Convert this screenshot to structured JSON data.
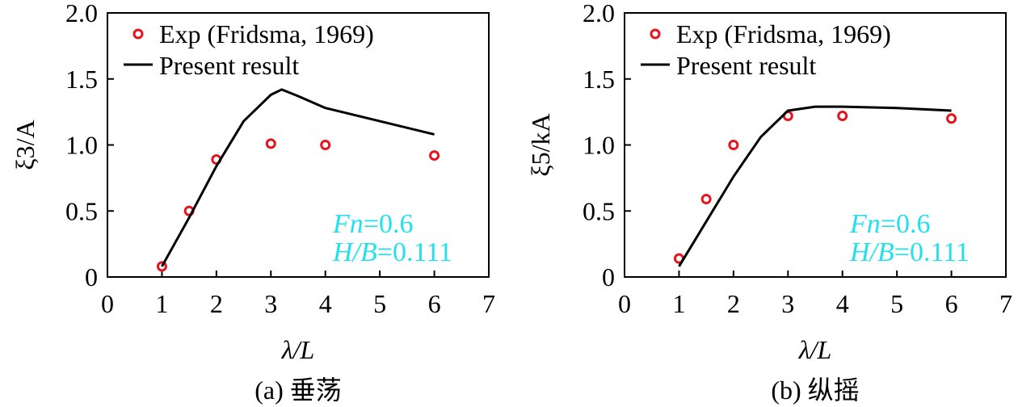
{
  "colors": {
    "experiment": "#e8141c",
    "model": "#000000",
    "annotation": "#22e0ee"
  },
  "chart_data": [
    {
      "type": "line",
      "caption": "(a) 垂荡",
      "xlabel": "λ/L",
      "ylabel": "ξ3/A",
      "xlim": [
        0,
        7
      ],
      "ylim": [
        0,
        2.0
      ],
      "xticks": [
        "0",
        "1",
        "2",
        "3",
        "4",
        "5",
        "6",
        "7"
      ],
      "yticks": [
        "0",
        "0.5",
        "1.0",
        "1.5",
        "2.0"
      ],
      "grid": false,
      "legend_position": "top-left",
      "series": [
        {
          "name": "Exp (Fridsma, 1969)",
          "style": "markers",
          "x": [
            1,
            1.5,
            2,
            3,
            4,
            6
          ],
          "y": [
            0.08,
            0.5,
            0.89,
            1.01,
            1.0,
            0.92
          ]
        },
        {
          "name": "Present result",
          "style": "line",
          "x": [
            1,
            1.5,
            2,
            2.5,
            3,
            3.2,
            3.5,
            4,
            5,
            6
          ],
          "y": [
            0.08,
            0.45,
            0.84,
            1.18,
            1.38,
            1.42,
            1.37,
            1.28,
            1.18,
            1.08
          ]
        }
      ],
      "annotations": [
        {
          "label": "Fn",
          "value": "=0.6"
        },
        {
          "label": "H/B",
          "value": "=0.111"
        }
      ]
    },
    {
      "type": "line",
      "caption": "(b) 纵摇",
      "xlabel": "λ/L",
      "ylabel": "ξ5/kA",
      "xlim": [
        0,
        7
      ],
      "ylim": [
        0,
        2.0
      ],
      "xticks": [
        "0",
        "1",
        "2",
        "3",
        "4",
        "5",
        "6",
        "7"
      ],
      "yticks": [
        "0",
        "0.5",
        "1.0",
        "1.5",
        "2.0"
      ],
      "grid": false,
      "legend_position": "top-left",
      "series": [
        {
          "name": "Exp (Fridsma, 1969)",
          "style": "markers",
          "x": [
            1,
            1.5,
            2,
            3,
            4,
            6
          ],
          "y": [
            0.14,
            0.59,
            1.0,
            1.22,
            1.22,
            1.2
          ]
        },
        {
          "name": "Present result",
          "style": "line",
          "x": [
            1,
            1.5,
            2,
            2.5,
            3,
            3.5,
            4,
            5,
            6
          ],
          "y": [
            0.08,
            0.42,
            0.76,
            1.06,
            1.26,
            1.29,
            1.29,
            1.28,
            1.26
          ]
        }
      ],
      "annotations": [
        {
          "label": "Fn",
          "value": "=0.6"
        },
        {
          "label": "H/B",
          "value": "=0.111"
        }
      ]
    }
  ]
}
